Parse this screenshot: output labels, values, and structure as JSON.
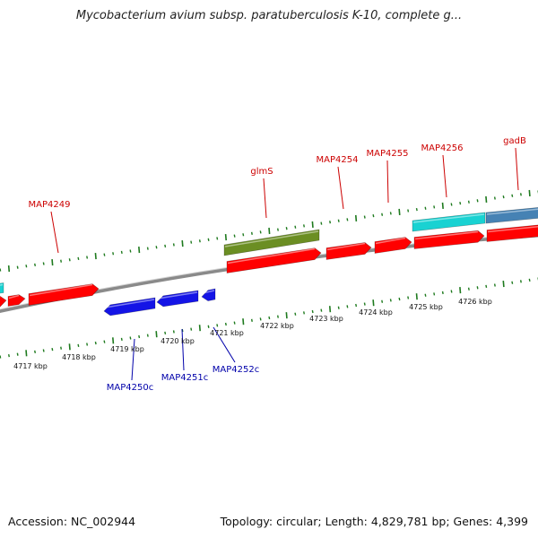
{
  "title": "Mycobacterium avium subsp. paratuberculosis K-10, complete g...",
  "footer": {
    "accession": "Accession: NC_002944",
    "summary": "Topology: circular; Length: 4,829,781 bp; Genes: 4,399"
  },
  "colors": {
    "plus_tick": "#1e7a1e",
    "minus_tick": "#1e7a1e",
    "backbone": "#8a8a8a",
    "gene_red": "#ff0000",
    "gene_blue": "#1414e6",
    "gene_green": "#6b8e23",
    "gene_cyan": "#19d2d2",
    "gene_steel": "#4682b4",
    "label_plus": "#cc0000",
    "label_minus": "#0000aa"
  },
  "kbp_ticks": [
    "4717 kbp",
    "4718 kbp",
    "4719 kbp",
    "4720 kbp",
    "4721 kbp",
    "4722 kbp",
    "4723 kbp",
    "4724 kbp",
    "4725 kbp",
    "4726 kbp"
  ],
  "plus_labels": [
    "MAP4249",
    "glmS",
    "MAP4254",
    "MAP4255",
    "MAP4256",
    "gadB"
  ],
  "minus_labels": [
    "MAP4250c",
    "MAP4251c",
    "MAP4252c"
  ],
  "features": [
    {
      "kind": "gene",
      "color": "gene_red"
    },
    {
      "kind": "gene",
      "color": "gene_red"
    },
    {
      "kind": "gene",
      "color": "gene_red"
    },
    {
      "kind": "gene",
      "color": "gene_blue"
    },
    {
      "kind": "gene",
      "color": "gene_blue"
    },
    {
      "kind": "gene",
      "color": "gene_blue"
    },
    {
      "kind": "gene",
      "color": "gene_green"
    },
    {
      "kind": "gene",
      "color": "gene_red"
    },
    {
      "kind": "gene",
      "color": "gene_red"
    },
    {
      "kind": "gene",
      "color": "gene_red"
    },
    {
      "kind": "gene",
      "color": "gene_cyan"
    },
    {
      "kind": "gene",
      "color": "gene_steel"
    },
    {
      "kind": "gene",
      "color": "gene_red"
    },
    {
      "kind": "gene",
      "color": "gene_red"
    },
    {
      "kind": "gene",
      "color": "gene_cyan"
    }
  ]
}
